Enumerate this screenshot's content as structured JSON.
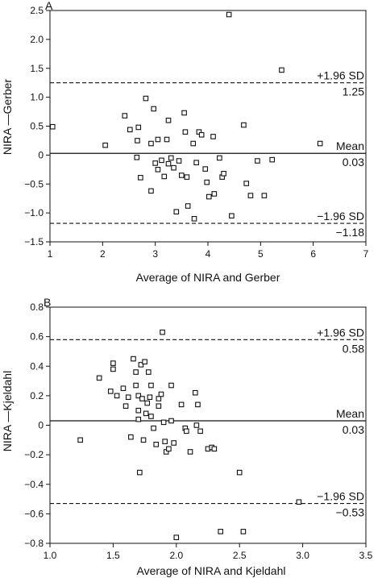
{
  "chart_data": [
    {
      "type": "scatter",
      "panel_label": "A",
      "xlabel": "Average of NIRA and Gerber",
      "ylabel": "NIRA —Gerber",
      "xlim": [
        1,
        7
      ],
      "ylim": [
        -1.5,
        2.5
      ],
      "xticks": [
        "1",
        "2",
        "3",
        "4",
        "5",
        "6",
        "7"
      ],
      "yticks": [
        "−1.5",
        "−1.0",
        "−0.5",
        "0",
        "0.5",
        "1.0",
        "1.5",
        "2.0",
        "2.5"
      ],
      "reference_lines": [
        {
          "name": "upper",
          "label": "+1.96 SD",
          "value_label": "1.25",
          "y": 1.25,
          "style": "dashed"
        },
        {
          "name": "mean",
          "label": "Mean",
          "value_label": "0.03",
          "y": 0.03,
          "style": "solid"
        },
        {
          "name": "lower",
          "label": "−1.96 SD",
          "value_label": "−1.18",
          "y": -1.18,
          "style": "dashed"
        }
      ],
      "points": [
        [
          1.05,
          0.49
        ],
        [
          2.05,
          0.17
        ],
        [
          2.42,
          0.68
        ],
        [
          2.52,
          0.44
        ],
        [
          2.68,
          0.48
        ],
        [
          2.66,
          0.25
        ],
        [
          2.82,
          0.98
        ],
        [
          2.97,
          0.8
        ],
        [
          2.92,
          0.2
        ],
        [
          2.65,
          -0.04
        ],
        [
          2.72,
          -0.39
        ],
        [
          2.92,
          -0.62
        ],
        [
          3.0,
          -0.14
        ],
        [
          3.05,
          0.27
        ],
        [
          3.05,
          -0.25
        ],
        [
          3.12,
          -0.09
        ],
        [
          3.17,
          -0.37
        ],
        [
          3.25,
          0.6
        ],
        [
          3.22,
          0.27
        ],
        [
          3.25,
          -0.15
        ],
        [
          3.3,
          -0.05
        ],
        [
          3.35,
          -0.22
        ],
        [
          3.4,
          -0.98
        ],
        [
          3.45,
          -0.1
        ],
        [
          3.5,
          -0.35
        ],
        [
          3.55,
          0.73
        ],
        [
          3.57,
          0.4
        ],
        [
          3.6,
          -0.38
        ],
        [
          3.62,
          -0.88
        ],
        [
          3.72,
          0.2
        ],
        [
          3.74,
          -1.1
        ],
        [
          3.78,
          -0.13
        ],
        [
          3.83,
          0.4
        ],
        [
          3.88,
          0.35
        ],
        [
          3.95,
          -0.24
        ],
        [
          3.98,
          -0.47
        ],
        [
          4.02,
          -0.72
        ],
        [
          4.1,
          0.32
        ],
        [
          4.12,
          -0.67
        ],
        [
          4.22,
          -0.05
        ],
        [
          4.27,
          -0.38
        ],
        [
          4.3,
          -0.32
        ],
        [
          4.4,
          2.43
        ],
        [
          4.45,
          -1.05
        ],
        [
          4.68,
          0.52
        ],
        [
          4.73,
          -0.49
        ],
        [
          4.81,
          -0.7
        ],
        [
          4.94,
          -0.1
        ],
        [
          5.07,
          -0.7
        ],
        [
          5.22,
          -0.08
        ],
        [
          5.4,
          1.47
        ],
        [
          6.13,
          0.2
        ]
      ]
    },
    {
      "type": "scatter",
      "panel_label": "B",
      "xlabel": "Average of NIRA and Kjeldahl",
      "ylabel": "NIRA —Kjeldahl",
      "xlim": [
        1.0,
        3.5
      ],
      "ylim": [
        -0.8,
        0.8
      ],
      "xticks": [
        "1.0",
        "1.5",
        "2.0",
        "2.5",
        "3.0",
        "3.5"
      ],
      "yticks": [
        "−0.8",
        "−0.6",
        "−0.4",
        "−0.2",
        "0",
        "0.2",
        "0.4",
        "0.6",
        "0.8"
      ],
      "reference_lines": [
        {
          "name": "upper",
          "label": "+1.96 SD",
          "value_label": "0.58",
          "y": 0.58,
          "style": "dashed"
        },
        {
          "name": "mean",
          "label": "Mean",
          "value_label": "0.03",
          "y": 0.03,
          "style": "solid"
        },
        {
          "name": "lower",
          "label": "−1.96 SD",
          "value_label": "−0.53",
          "y": -0.53,
          "style": "dashed"
        }
      ],
      "points": [
        [
          1.24,
          -0.1
        ],
        [
          1.39,
          0.32
        ],
        [
          1.48,
          0.23
        ],
        [
          1.5,
          0.38
        ],
        [
          1.5,
          0.42
        ],
        [
          1.53,
          0.2
        ],
        [
          1.58,
          0.25
        ],
        [
          1.6,
          0.13
        ],
        [
          1.62,
          0.19
        ],
        [
          1.64,
          -0.08
        ],
        [
          1.66,
          0.45
        ],
        [
          1.68,
          0.36
        ],
        [
          1.68,
          0.27
        ],
        [
          1.7,
          0.2
        ],
        [
          1.7,
          0.1
        ],
        [
          1.7,
          0.04
        ],
        [
          1.71,
          -0.32
        ],
        [
          1.72,
          0.41
        ],
        [
          1.73,
          0.18
        ],
        [
          1.74,
          -0.1
        ],
        [
          1.75,
          0.43
        ],
        [
          1.76,
          0.08
        ],
        [
          1.77,
          0.15
        ],
        [
          1.78,
          0.36
        ],
        [
          1.79,
          0.19
        ],
        [
          1.8,
          0.27
        ],
        [
          1.8,
          0.06
        ],
        [
          1.82,
          -0.02
        ],
        [
          1.84,
          -0.13
        ],
        [
          1.86,
          0.13
        ],
        [
          1.86,
          0.18
        ],
        [
          1.88,
          0.21
        ],
        [
          1.89,
          0.63
        ],
        [
          1.9,
          0.02
        ],
        [
          1.91,
          -0.11
        ],
        [
          1.92,
          -0.18
        ],
        [
          1.94,
          -0.16
        ],
        [
          1.96,
          0.27
        ],
        [
          1.96,
          0.03
        ],
        [
          1.98,
          -0.12
        ],
        [
          2.0,
          -0.76
        ],
        [
          2.04,
          0.14
        ],
        [
          2.07,
          -0.02
        ],
        [
          2.08,
          -0.04
        ],
        [
          2.11,
          -0.18
        ],
        [
          2.15,
          0.22
        ],
        [
          2.16,
          0.0
        ],
        [
          2.17,
          0.14
        ],
        [
          2.19,
          -0.04
        ],
        [
          2.25,
          -0.16
        ],
        [
          2.28,
          -0.15
        ],
        [
          2.3,
          -0.16
        ],
        [
          2.35,
          -0.72
        ],
        [
          2.5,
          -0.32
        ],
        [
          2.53,
          -0.72
        ],
        [
          2.97,
          -0.52
        ]
      ]
    }
  ]
}
